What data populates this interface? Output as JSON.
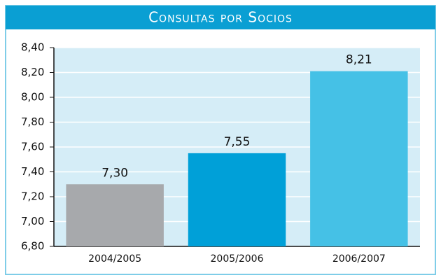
{
  "chart_data": {
    "type": "bar",
    "title": "Consultas por Socios",
    "categories": [
      "2004/2005",
      "2005/2006",
      "2006/2007"
    ],
    "values": [
      7.3,
      7.55,
      8.21
    ],
    "value_labels": [
      "7,30",
      "7,55",
      "8,21"
    ],
    "colors": [
      "#a7a9ac",
      "#00a0d8",
      "#45c1e6"
    ],
    "ylim": [
      6.8,
      8.4
    ],
    "yticks": [
      {
        "value": 6.8,
        "label": "6,80"
      },
      {
        "value": 7.0,
        "label": "7,00"
      },
      {
        "value": 7.2,
        "label": "7,20"
      },
      {
        "value": 7.4,
        "label": "7,40"
      },
      {
        "value": 7.6,
        "label": "7,60"
      },
      {
        "value": 7.8,
        "label": "7,80"
      },
      {
        "value": 8.0,
        "label": "8,00"
      },
      {
        "value": 8.2,
        "label": "8,20"
      },
      {
        "value": 8.4,
        "label": "8,40"
      }
    ],
    "grid": true
  }
}
